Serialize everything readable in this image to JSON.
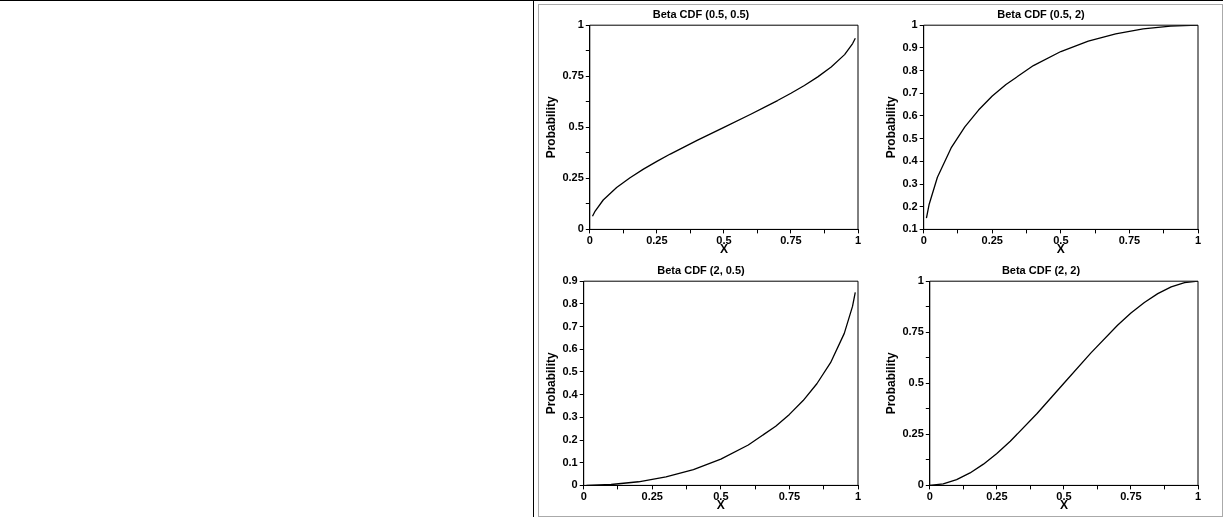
{
  "chart_data": [
    {
      "type": "line",
      "title": "Beta CDF (0.5, 0.5)",
      "xlabel": "X",
      "ylabel": "Probability",
      "color": "#000000",
      "x": [
        0.01,
        0.02,
        0.05,
        0.1,
        0.15,
        0.2,
        0.25,
        0.3,
        0.4,
        0.5,
        0.6,
        0.7,
        0.75,
        0.8,
        0.85,
        0.9,
        0.95,
        0.98,
        0.99
      ],
      "values": [
        0.064,
        0.09,
        0.144,
        0.205,
        0.253,
        0.295,
        0.333,
        0.369,
        0.436,
        0.5,
        0.564,
        0.631,
        0.667,
        0.705,
        0.747,
        0.795,
        0.856,
        0.91,
        0.936
      ],
      "xlim": [
        0,
        1
      ],
      "ylim": [
        0,
        1
      ],
      "xticks": [
        0,
        {
          "value": 0.125,
          "label": null
        },
        0.25,
        {
          "value": 0.375,
          "label": null
        },
        0.5,
        {
          "value": 0.625,
          "label": null
        },
        0.75,
        {
          "value": 0.875,
          "label": null
        },
        1
      ],
      "yticks": [
        0,
        {
          "value": 0.125,
          "label": null
        },
        0.25,
        {
          "value": 0.375,
          "label": null
        },
        0.5,
        {
          "value": 0.625,
          "label": null
        },
        0.75,
        {
          "value": 0.875,
          "label": null
        },
        1
      ],
      "grid": false,
      "legend": false
    },
    {
      "type": "line",
      "title": "Beta CDF (0.5, 2)",
      "xlabel": "X",
      "ylabel": "Probability",
      "color": "#000000",
      "x": [
        0.01,
        0.02,
        0.05,
        0.1,
        0.15,
        0.2,
        0.25,
        0.3,
        0.4,
        0.5,
        0.6,
        0.7,
        0.8,
        0.9,
        1
      ],
      "values": [
        0.15,
        0.211,
        0.33,
        0.459,
        0.552,
        0.626,
        0.688,
        0.739,
        0.822,
        0.884,
        0.93,
        0.962,
        0.984,
        0.996,
        1
      ],
      "xlim": [
        0,
        1
      ],
      "ylim": [
        0.1,
        1
      ],
      "xticks": [
        0,
        {
          "value": 0.125,
          "label": null
        },
        0.25,
        {
          "value": 0.375,
          "label": null
        },
        0.5,
        {
          "value": 0.625,
          "label": null
        },
        0.75,
        {
          "value": 0.875,
          "label": null
        },
        1
      ],
      "yticks": [
        0.1,
        0.2,
        0.3,
        0.4,
        0.5,
        0.6,
        0.7,
        0.8,
        0.9,
        1
      ],
      "grid": false,
      "legend": false
    },
    {
      "type": "line",
      "title": "Beta CDF (2, 0.5)",
      "xlabel": "X",
      "ylabel": "Probability",
      "color": "#000000",
      "x": [
        0.01,
        0.1,
        0.2,
        0.3,
        0.4,
        0.5,
        0.6,
        0.7,
        0.75,
        0.8,
        0.85,
        0.9,
        0.95,
        0.98,
        0.99
      ],
      "values": [
        0,
        0.004,
        0.016,
        0.038,
        0.07,
        0.116,
        0.178,
        0.261,
        0.313,
        0.374,
        0.448,
        0.541,
        0.67,
        0.789,
        0.851
      ],
      "xlim": [
        0,
        1
      ],
      "ylim": [
        0,
        0.9
      ],
      "xticks": [
        0,
        {
          "value": 0.125,
          "label": null
        },
        0.25,
        {
          "value": 0.375,
          "label": null
        },
        0.5,
        {
          "value": 0.625,
          "label": null
        },
        0.75,
        {
          "value": 0.875,
          "label": null
        },
        1
      ],
      "yticks": [
        0,
        0.1,
        0.2,
        0.3,
        0.4,
        0.5,
        0.6,
        0.7,
        0.8,
        0.9
      ],
      "grid": false,
      "legend": false
    },
    {
      "type": "line",
      "title": "Beta CDF (2, 2)",
      "xlabel": "X",
      "ylabel": "Probability",
      "color": "#000000",
      "x": [
        0,
        0.05,
        0.1,
        0.15,
        0.2,
        0.25,
        0.3,
        0.4,
        0.5,
        0.6,
        0.7,
        0.75,
        0.8,
        0.85,
        0.9,
        0.95,
        1
      ],
      "values": [
        0,
        0.007,
        0.028,
        0.061,
        0.104,
        0.156,
        0.216,
        0.352,
        0.5,
        0.648,
        0.784,
        0.844,
        0.896,
        0.939,
        0.972,
        0.993,
        1
      ],
      "xlim": [
        0,
        1
      ],
      "ylim": [
        0,
        1
      ],
      "xticks": [
        0,
        {
          "value": 0.125,
          "label": null
        },
        0.25,
        {
          "value": 0.375,
          "label": null
        },
        0.5,
        {
          "value": 0.625,
          "label": null
        },
        0.75,
        {
          "value": 0.875,
          "label": null
        },
        1
      ],
      "yticks": [
        0,
        {
          "value": 0.125,
          "label": null
        },
        0.25,
        {
          "value": 0.375,
          "label": null
        },
        0.5,
        {
          "value": 0.625,
          "label": null
        },
        0.75,
        {
          "value": 0.875,
          "label": null
        },
        1
      ],
      "grid": false,
      "legend": false
    }
  ]
}
